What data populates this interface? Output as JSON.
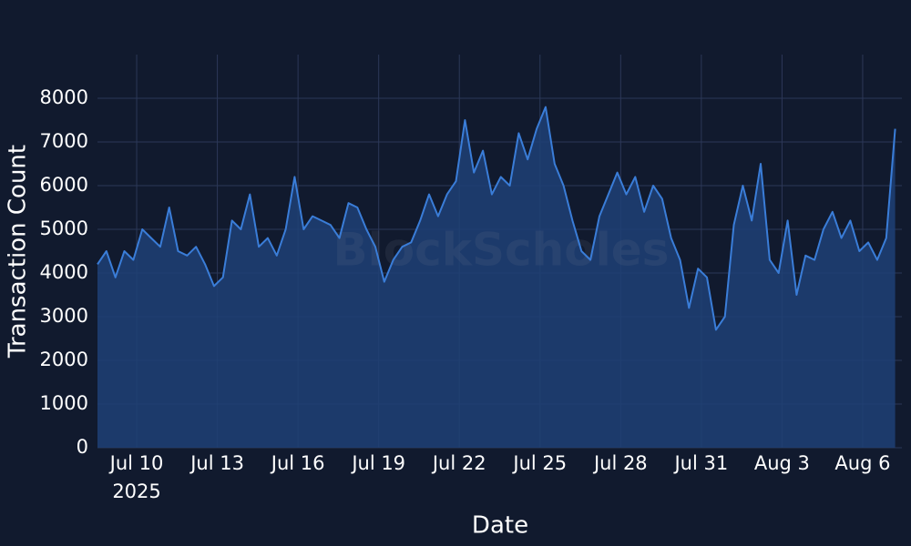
{
  "chart_data": {
    "type": "area",
    "x_title": "Date",
    "y_title": "Transaction Count",
    "watermark": "BlockScholes",
    "x_year_label": "2025",
    "color": "#3a7dd8",
    "fill": "#1e4175",
    "grid": true,
    "xlim": [
      "2025-07-08T13:00",
      "2025-08-07T11:00"
    ],
    "xticks": [
      {
        "value": "2025-07-10T00:00",
        "label": "Jul 10"
      },
      {
        "value": "2025-07-13T00:00",
        "label": "Jul 13"
      },
      {
        "value": "2025-07-16T00:00",
        "label": "Jul 16"
      },
      {
        "value": "2025-07-19T00:00",
        "label": "Jul 19"
      },
      {
        "value": "2025-07-22T00:00",
        "label": "Jul 22"
      },
      {
        "value": "2025-07-25T00:00",
        "label": "Jul 25"
      },
      {
        "value": "2025-07-28T00:00",
        "label": "Jul 28"
      },
      {
        "value": "2025-07-31T00:00",
        "label": "Jul 31"
      },
      {
        "value": "2025-08-03T00:00",
        "label": "Aug 3"
      },
      {
        "value": "2025-08-06T00:00",
        "label": "Aug 6"
      }
    ],
    "ylim": [
      0,
      9000
    ],
    "yticks": [
      0,
      1000,
      2000,
      3000,
      4000,
      5000,
      6000,
      7000,
      8000
    ],
    "x": [
      "2025-07-08T13:00",
      "2025-07-08T21:00",
      "2025-07-09T05:00",
      "2025-07-09T13:00",
      "2025-07-09T21:00",
      "2025-07-10T05:00",
      "2025-07-10T13:00",
      "2025-07-10T21:00",
      "2025-07-11T05:00",
      "2025-07-11T13:00",
      "2025-07-11T21:00",
      "2025-07-12T05:00",
      "2025-07-12T13:00",
      "2025-07-12T21:00",
      "2025-07-13T05:00",
      "2025-07-13T13:00",
      "2025-07-13T21:00",
      "2025-07-14T05:00",
      "2025-07-14T13:00",
      "2025-07-14T21:00",
      "2025-07-15T05:00",
      "2025-07-15T13:00",
      "2025-07-15T21:00",
      "2025-07-16T05:00",
      "2025-07-16T13:00",
      "2025-07-16T21:00",
      "2025-07-17T05:00",
      "2025-07-17T13:00",
      "2025-07-17T21:00",
      "2025-07-18T05:00",
      "2025-07-18T13:00",
      "2025-07-18T21:00",
      "2025-07-19T05:00",
      "2025-07-19T13:00",
      "2025-07-19T21:00",
      "2025-07-20T05:00",
      "2025-07-20T13:00",
      "2025-07-20T21:00",
      "2025-07-21T05:00",
      "2025-07-21T13:00",
      "2025-07-21T21:00",
      "2025-07-22T05:00",
      "2025-07-22T13:00",
      "2025-07-22T21:00",
      "2025-07-23T05:00",
      "2025-07-23T13:00",
      "2025-07-23T21:00",
      "2025-07-24T05:00",
      "2025-07-24T13:00",
      "2025-07-24T21:00",
      "2025-07-25T05:00",
      "2025-07-25T13:00",
      "2025-07-25T21:00",
      "2025-07-26T05:00",
      "2025-07-26T13:00",
      "2025-07-26T21:00",
      "2025-07-27T05:00",
      "2025-07-27T13:00",
      "2025-07-27T21:00",
      "2025-07-28T05:00",
      "2025-07-28T13:00",
      "2025-07-28T21:00",
      "2025-07-29T05:00",
      "2025-07-29T13:00",
      "2025-07-29T21:00",
      "2025-07-30T05:00",
      "2025-07-30T13:00",
      "2025-07-30T21:00",
      "2025-07-31T05:00",
      "2025-07-31T13:00",
      "2025-07-31T21:00",
      "2025-08-01T05:00",
      "2025-08-01T13:00",
      "2025-08-01T21:00",
      "2025-08-02T05:00",
      "2025-08-02T13:00",
      "2025-08-02T21:00",
      "2025-08-03T05:00",
      "2025-08-03T13:00",
      "2025-08-03T21:00",
      "2025-08-04T05:00",
      "2025-08-04T13:00",
      "2025-08-04T21:00",
      "2025-08-05T05:00",
      "2025-08-05T13:00",
      "2025-08-05T21:00",
      "2025-08-06T05:00",
      "2025-08-06T13:00",
      "2025-08-06T21:00",
      "2025-08-07T05:00"
    ],
    "values": [
      4200,
      4500,
      3900,
      4500,
      4300,
      5000,
      4800,
      4600,
      5500,
      4500,
      4400,
      4600,
      4200,
      3700,
      3900,
      5200,
      5000,
      5800,
      4600,
      4800,
      4400,
      5000,
      6200,
      5000,
      5300,
      5200,
      5100,
      4800,
      5600,
      5500,
      5000,
      4600,
      3800,
      4300,
      4600,
      4700,
      5200,
      5800,
      5300,
      5800,
      6100,
      7500,
      6300,
      6800,
      5800,
      6200,
      6000,
      7200,
      6600,
      7300,
      7800,
      6500,
      6000,
      5200,
      4500,
      4300,
      5300,
      5800,
      6300,
      5800,
      6200,
      5400,
      6000,
      5700,
      4800,
      4300,
      3200,
      4100,
      3900,
      2700,
      3000,
      5100,
      6000,
      5200,
      6500,
      4300,
      4000,
      5200,
      3500,
      4400,
      4300,
      5000,
      5400,
      4800,
      5200,
      4500,
      4700,
      4300,
      4800,
      7300
    ]
  }
}
